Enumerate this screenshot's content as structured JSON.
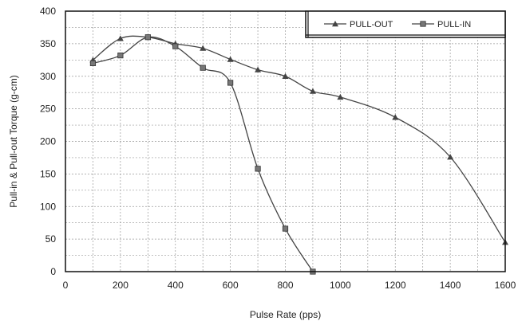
{
  "chart_data": {
    "type": "line",
    "xlabel": "Pulse Rate (pps)",
    "ylabel": "Pull-in & Pull-out Torque (g-cm)",
    "xlim": [
      0,
      1600
    ],
    "ylim": [
      0,
      400
    ],
    "xticks": [
      0,
      200,
      400,
      600,
      800,
      1000,
      1200,
      1400,
      1600
    ],
    "yticks": [
      0,
      50,
      100,
      150,
      200,
      250,
      300,
      350,
      400
    ],
    "grid": true,
    "legend_position": "top-right",
    "series": [
      {
        "name": "PULL-OUT",
        "marker": "triangle",
        "color": "#444444",
        "points": [
          [
            100,
            325
          ],
          [
            200,
            358
          ],
          [
            300,
            360
          ],
          [
            400,
            350
          ],
          [
            500,
            343
          ],
          [
            600,
            326
          ],
          [
            700,
            310
          ],
          [
            800,
            300
          ],
          [
            900,
            277
          ],
          [
            1000,
            268
          ],
          [
            1200,
            237
          ],
          [
            1400,
            176
          ],
          [
            1600,
            45
          ]
        ]
      },
      {
        "name": "PULL-IN",
        "marker": "square",
        "color": "#444444",
        "points": [
          [
            100,
            320
          ],
          [
            200,
            332
          ],
          [
            300,
            360
          ],
          [
            400,
            346
          ],
          [
            500,
            313
          ],
          [
            600,
            290
          ],
          [
            700,
            158
          ],
          [
            800,
            66
          ],
          [
            900,
            0
          ]
        ]
      }
    ]
  }
}
